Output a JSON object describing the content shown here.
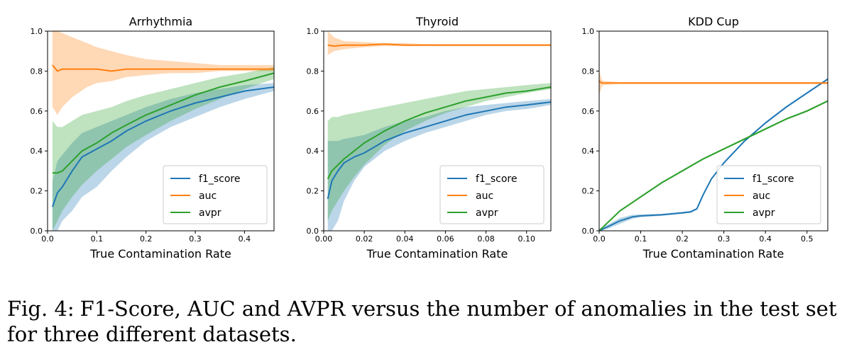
{
  "caption": {
    "label": "Fig. 4:",
    "text": "F1-Score, AUC and AVPR versus the number of anomalies in the test set for three different datasets."
  },
  "legend": [
    "f1_score",
    "auc",
    "avpr"
  ],
  "colors": {
    "f1_score": "#1f77b4",
    "auc": "#ff7f0e",
    "avpr": "#2ca02c"
  },
  "chart_data": [
    {
      "type": "line",
      "title": "Arrhythmia",
      "xlabel": "True Contamination Rate",
      "ylabel": "",
      "xlim": [
        0,
        0.46
      ],
      "ylim": [
        0,
        1.0
      ],
      "xticks": [
        0.0,
        0.1,
        0.2,
        0.3,
        0.4
      ],
      "xtick_labels": [
        "0.0",
        "0.1",
        "0.2",
        "0.3",
        "0.4"
      ],
      "yticks": [
        0.0,
        0.2,
        0.4,
        0.6,
        0.8,
        1.0
      ],
      "ytick_labels": [
        "0.0",
        "0.2",
        "0.4",
        "0.6",
        "0.8",
        "1.0"
      ],
      "legend_position": "lower-right",
      "series": [
        {
          "name": "f1_score",
          "x": [
            0.01,
            0.02,
            0.03,
            0.05,
            0.07,
            0.1,
            0.13,
            0.16,
            0.2,
            0.25,
            0.3,
            0.35,
            0.4,
            0.46
          ],
          "y": [
            0.12,
            0.19,
            0.22,
            0.3,
            0.37,
            0.41,
            0.45,
            0.5,
            0.55,
            0.6,
            0.64,
            0.67,
            0.7,
            0.72
          ],
          "lower": [
            0.0,
            0.0,
            0.05,
            0.1,
            0.17,
            0.22,
            0.3,
            0.37,
            0.45,
            0.52,
            0.57,
            0.62,
            0.66,
            0.7
          ],
          "upper": [
            0.25,
            0.35,
            0.38,
            0.44,
            0.49,
            0.52,
            0.55,
            0.58,
            0.62,
            0.66,
            0.69,
            0.71,
            0.73,
            0.74
          ]
        },
        {
          "name": "auc",
          "x": [
            0.01,
            0.02,
            0.03,
            0.05,
            0.08,
            0.1,
            0.13,
            0.16,
            0.2,
            0.25,
            0.3,
            0.35,
            0.4,
            0.46
          ],
          "y": [
            0.83,
            0.8,
            0.81,
            0.81,
            0.81,
            0.81,
            0.8,
            0.81,
            0.81,
            0.81,
            0.81,
            0.81,
            0.81,
            0.81
          ],
          "lower": [
            0.62,
            0.58,
            0.62,
            0.67,
            0.72,
            0.74,
            0.75,
            0.77,
            0.78,
            0.79,
            0.79,
            0.8,
            0.8,
            0.8
          ],
          "upper": [
            1.0,
            1.0,
            0.99,
            0.97,
            0.94,
            0.92,
            0.9,
            0.88,
            0.86,
            0.85,
            0.84,
            0.83,
            0.83,
            0.83
          ]
        },
        {
          "name": "avpr",
          "x": [
            0.01,
            0.02,
            0.03,
            0.05,
            0.07,
            0.1,
            0.13,
            0.16,
            0.2,
            0.25,
            0.3,
            0.35,
            0.4,
            0.46
          ],
          "y": [
            0.29,
            0.29,
            0.3,
            0.35,
            0.4,
            0.44,
            0.49,
            0.53,
            0.58,
            0.63,
            0.68,
            0.72,
            0.75,
            0.79
          ],
          "lower": [
            0.0,
            0.05,
            0.1,
            0.17,
            0.23,
            0.3,
            0.36,
            0.42,
            0.48,
            0.55,
            0.61,
            0.66,
            0.71,
            0.76
          ],
          "upper": [
            0.55,
            0.52,
            0.52,
            0.55,
            0.58,
            0.6,
            0.62,
            0.65,
            0.68,
            0.71,
            0.74,
            0.77,
            0.79,
            0.82
          ]
        }
      ]
    },
    {
      "type": "line",
      "title": "Thyroid",
      "xlabel": "True Contamination Rate",
      "ylabel": "",
      "xlim": [
        0,
        0.112
      ],
      "ylim": [
        0,
        1.0
      ],
      "xticks": [
        0.0,
        0.02,
        0.04,
        0.06,
        0.08,
        0.1
      ],
      "xtick_labels": [
        "0.00",
        "0.02",
        "0.04",
        "0.06",
        "0.08",
        "0.10"
      ],
      "yticks": [
        0.0,
        0.2,
        0.4,
        0.6,
        0.8,
        1.0
      ],
      "ytick_labels": [
        "0.0",
        "0.2",
        "0.4",
        "0.6",
        "0.8",
        "1.0"
      ],
      "legend_position": "lower-right",
      "series": [
        {
          "name": "f1_score",
          "x": [
            0.002,
            0.004,
            0.007,
            0.01,
            0.015,
            0.02,
            0.025,
            0.03,
            0.04,
            0.05,
            0.06,
            0.07,
            0.08,
            0.09,
            0.1,
            0.112
          ],
          "y": [
            0.16,
            0.25,
            0.3,
            0.34,
            0.37,
            0.39,
            0.42,
            0.45,
            0.49,
            0.52,
            0.55,
            0.58,
            0.6,
            0.62,
            0.63,
            0.645
          ],
          "lower": [
            0.0,
            0.0,
            0.05,
            0.15,
            0.25,
            0.32,
            0.36,
            0.4,
            0.45,
            0.49,
            0.52,
            0.55,
            0.58,
            0.6,
            0.61,
            0.63
          ],
          "upper": [
            0.45,
            0.45,
            0.45,
            0.46,
            0.47,
            0.48,
            0.5,
            0.52,
            0.55,
            0.57,
            0.6,
            0.62,
            0.63,
            0.64,
            0.65,
            0.66
          ]
        },
        {
          "name": "auc",
          "x": [
            0.002,
            0.005,
            0.01,
            0.02,
            0.03,
            0.04,
            0.05,
            0.06,
            0.07,
            0.08,
            0.09,
            0.1,
            0.112
          ],
          "y": [
            0.93,
            0.925,
            0.93,
            0.93,
            0.935,
            0.93,
            0.93,
            0.93,
            0.93,
            0.93,
            0.93,
            0.93,
            0.93
          ],
          "lower": [
            0.88,
            0.9,
            0.91,
            0.92,
            0.925,
            0.925,
            0.925,
            0.925,
            0.925,
            0.925,
            0.925,
            0.925,
            0.925
          ],
          "upper": [
            1.0,
            0.97,
            0.95,
            0.945,
            0.94,
            0.94,
            0.935,
            0.935,
            0.935,
            0.935,
            0.935,
            0.935,
            0.935
          ]
        },
        {
          "name": "avpr",
          "x": [
            0.002,
            0.004,
            0.007,
            0.01,
            0.015,
            0.02,
            0.025,
            0.03,
            0.04,
            0.05,
            0.06,
            0.07,
            0.08,
            0.09,
            0.1,
            0.112
          ],
          "y": [
            0.26,
            0.3,
            0.33,
            0.36,
            0.4,
            0.44,
            0.47,
            0.5,
            0.55,
            0.59,
            0.62,
            0.65,
            0.67,
            0.69,
            0.7,
            0.72
          ],
          "lower": [
            0.05,
            0.1,
            0.15,
            0.2,
            0.27,
            0.33,
            0.38,
            0.43,
            0.5,
            0.55,
            0.59,
            0.62,
            0.65,
            0.67,
            0.69,
            0.71
          ],
          "upper": [
            0.55,
            0.57,
            0.57,
            0.58,
            0.59,
            0.6,
            0.61,
            0.62,
            0.64,
            0.66,
            0.68,
            0.7,
            0.71,
            0.72,
            0.73,
            0.74
          ]
        }
      ]
    },
    {
      "type": "line",
      "title": "KDD Cup",
      "xlabel": "True Contamination Rate",
      "ylabel": "",
      "xlim": [
        0,
        0.55
      ],
      "ylim": [
        0,
        1.0
      ],
      "xticks": [
        0.0,
        0.1,
        0.2,
        0.3,
        0.4,
        0.5
      ],
      "xtick_labels": [
        "0.0",
        "0.1",
        "0.2",
        "0.3",
        "0.4",
        "0.5"
      ],
      "yticks": [
        0.0,
        0.2,
        0.4,
        0.6,
        0.8,
        1.0
      ],
      "ytick_labels": [
        "0.0",
        "0.2",
        "0.4",
        "0.6",
        "0.8",
        "1.0"
      ],
      "legend_position": "lower-right",
      "series": [
        {
          "name": "f1_score",
          "x": [
            0.0,
            0.02,
            0.05,
            0.08,
            0.1,
            0.15,
            0.2,
            0.22,
            0.235,
            0.25,
            0.27,
            0.3,
            0.35,
            0.4,
            0.45,
            0.5,
            0.55
          ],
          "y": [
            0.0,
            0.02,
            0.05,
            0.07,
            0.075,
            0.08,
            0.09,
            0.095,
            0.11,
            0.18,
            0.26,
            0.34,
            0.45,
            0.54,
            0.62,
            0.69,
            0.76
          ],
          "lower": [
            0.0,
            0.01,
            0.035,
            0.06,
            0.068,
            0.075,
            0.085,
            0.09,
            0.105,
            0.175,
            0.255,
            0.335,
            0.445,
            0.535,
            0.615,
            0.685,
            0.755
          ],
          "upper": [
            0.01,
            0.03,
            0.065,
            0.08,
            0.082,
            0.085,
            0.095,
            0.1,
            0.115,
            0.185,
            0.265,
            0.345,
            0.455,
            0.545,
            0.625,
            0.695,
            0.765
          ]
        },
        {
          "name": "auc",
          "x": [
            0.0,
            0.003,
            0.006,
            0.01,
            0.05,
            0.1,
            0.2,
            0.3,
            0.4,
            0.5,
            0.55
          ],
          "y": [
            0.75,
            0.745,
            0.74,
            0.74,
            0.74,
            0.74,
            0.74,
            0.74,
            0.74,
            0.74,
            0.74
          ],
          "lower": [
            0.68,
            0.7,
            0.72,
            0.73,
            0.735,
            0.735,
            0.735,
            0.735,
            0.735,
            0.735,
            0.735
          ],
          "upper": [
            0.8,
            0.78,
            0.76,
            0.75,
            0.745,
            0.745,
            0.745,
            0.745,
            0.745,
            0.745,
            0.745
          ]
        },
        {
          "name": "avpr",
          "x": [
            0.0,
            0.02,
            0.05,
            0.1,
            0.15,
            0.2,
            0.25,
            0.3,
            0.35,
            0.4,
            0.45,
            0.5,
            0.55
          ],
          "y": [
            0.0,
            0.04,
            0.1,
            0.17,
            0.24,
            0.3,
            0.36,
            0.41,
            0.46,
            0.51,
            0.56,
            0.6,
            0.65
          ],
          "lower": [
            0.0,
            0.035,
            0.095,
            0.165,
            0.235,
            0.295,
            0.355,
            0.405,
            0.455,
            0.505,
            0.555,
            0.595,
            0.645
          ],
          "upper": [
            0.005,
            0.045,
            0.105,
            0.175,
            0.245,
            0.305,
            0.365,
            0.415,
            0.465,
            0.515,
            0.565,
            0.605,
            0.655
          ]
        }
      ]
    }
  ]
}
